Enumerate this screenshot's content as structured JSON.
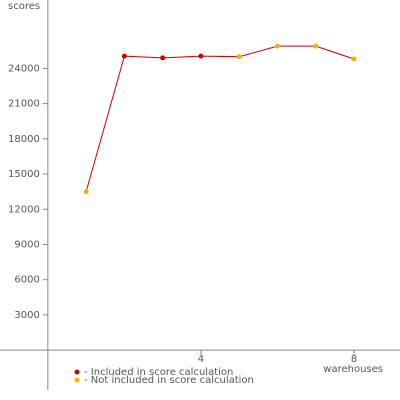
{
  "chart_data": {
    "type": "line",
    "y_label": "scores",
    "x_label": "warehouses",
    "x": [
      1,
      2,
      3,
      4,
      5,
      6,
      7,
      8
    ],
    "values": [
      13500,
      25050,
      24900,
      25050,
      25000,
      25900,
      25900,
      24800
    ],
    "line_color": "#cc0000",
    "included": [
      false,
      true,
      true,
      true,
      false,
      false,
      false,
      false
    ],
    "legend": [
      {
        "label": "- Included in score calculation",
        "color": "#cc0000"
      },
      {
        "label": "- Not included in score calculation",
        "color": "#f0b400"
      }
    ],
    "xlim": [
      -1.25,
      9.2
    ],
    "ylim": [
      -3400,
      29830
    ],
    "xticks": [
      4,
      8
    ],
    "yticks": [
      3000,
      6000,
      9000,
      12000,
      15000,
      18000,
      21000,
      24000
    ]
  }
}
